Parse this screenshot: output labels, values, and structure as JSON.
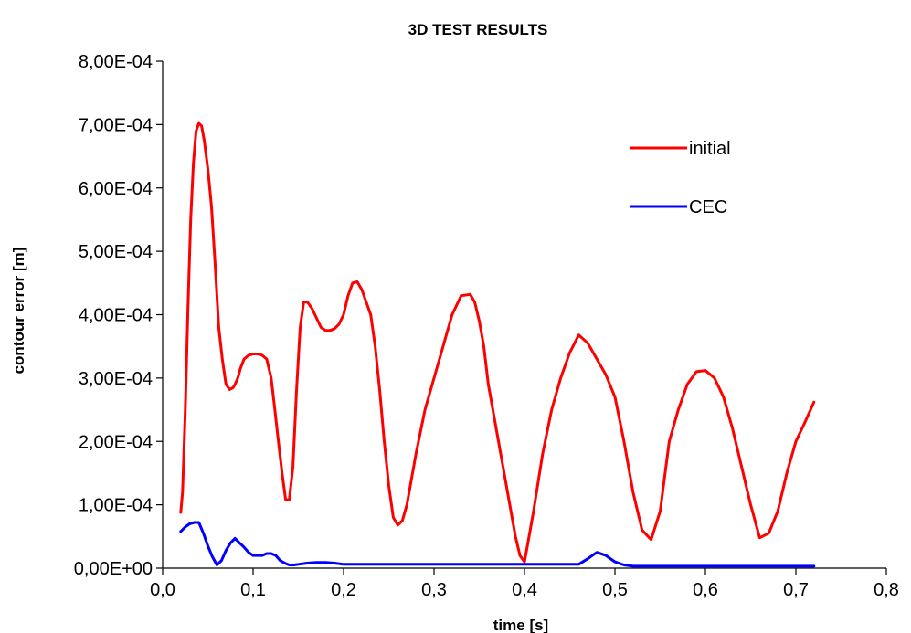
{
  "chart_data": {
    "type": "line",
    "title": "3D TEST RESULTS",
    "xlabel": "time [s]",
    "ylabel": "contour error [m]",
    "xlim": [
      0,
      0.8
    ],
    "ylim": [
      0,
      0.0008
    ],
    "x_ticks": [
      "0,0",
      "0,1",
      "0,2",
      "0,3",
      "0,4",
      "0,5",
      "0,6",
      "0,7",
      "0,8"
    ],
    "y_ticks": [
      "0,00E+00",
      "1,00E-04",
      "2,00E-04",
      "3,00E-04",
      "4,00E-04",
      "5,00E-04",
      "6,00E-04",
      "7,00E-04",
      "8,00E-04"
    ],
    "grid": false,
    "legend_position": "top-right",
    "series": [
      {
        "name": "initial",
        "color": "#ff0000",
        "x": [
          0.02,
          0.022,
          0.025,
          0.028,
          0.031,
          0.034,
          0.037,
          0.04,
          0.043,
          0.046,
          0.05,
          0.054,
          0.058,
          0.062,
          0.066,
          0.07,
          0.074,
          0.078,
          0.08,
          0.083,
          0.086,
          0.09,
          0.095,
          0.1,
          0.105,
          0.11,
          0.115,
          0.12,
          0.124,
          0.128,
          0.132,
          0.136,
          0.14,
          0.144,
          0.148,
          0.152,
          0.156,
          0.16,
          0.165,
          0.17,
          0.175,
          0.18,
          0.185,
          0.19,
          0.195,
          0.2,
          0.205,
          0.21,
          0.215,
          0.22,
          0.225,
          0.23,
          0.235,
          0.24,
          0.245,
          0.25,
          0.255,
          0.26,
          0.265,
          0.27,
          0.28,
          0.29,
          0.3,
          0.31,
          0.32,
          0.33,
          0.34,
          0.345,
          0.35,
          0.355,
          0.36,
          0.37,
          0.38,
          0.39,
          0.395,
          0.4,
          0.405,
          0.41,
          0.42,
          0.43,
          0.44,
          0.45,
          0.46,
          0.47,
          0.48,
          0.49,
          0.5,
          0.51,
          0.52,
          0.53,
          0.54,
          0.55,
          0.56,
          0.57,
          0.58,
          0.59,
          0.6,
          0.61,
          0.62,
          0.63,
          0.64,
          0.65,
          0.66,
          0.67,
          0.68,
          0.69,
          0.7,
          0.71,
          0.72
        ],
        "values": [
          8.8e-05,
          0.00012,
          0.00025,
          0.00041,
          0.00055,
          0.00064,
          0.00069,
          0.000702,
          0.000698,
          0.000675,
          0.00063,
          0.00057,
          0.00048,
          0.00038,
          0.00033,
          0.00029,
          0.000282,
          0.000285,
          0.00029,
          0.0003,
          0.000315,
          0.00033,
          0.000336,
          0.000338,
          0.000338,
          0.000336,
          0.00033,
          0.0003,
          0.00025,
          0.0002,
          0.00015,
          0.000108,
          0.000108,
          0.00016,
          0.00028,
          0.00038,
          0.00042,
          0.00042,
          0.00041,
          0.000395,
          0.00038,
          0.000375,
          0.000375,
          0.000378,
          0.000385,
          0.0004,
          0.00043,
          0.00045,
          0.000452,
          0.00044,
          0.00042,
          0.0004,
          0.00035,
          0.00028,
          0.0002,
          0.00013,
          8e-05,
          6.8e-05,
          7.5e-05,
          0.0001,
          0.00018,
          0.00025,
          0.0003,
          0.00035,
          0.0004,
          0.00043,
          0.000432,
          0.00042,
          0.00039,
          0.00035,
          0.00029,
          0.00021,
          0.00013,
          5e-05,
          2e-05,
          1e-05,
          5e-05,
          9e-05,
          0.00018,
          0.00025,
          0.0003,
          0.00034,
          0.000368,
          0.000355,
          0.00033,
          0.000305,
          0.00027,
          0.0002,
          0.00012,
          6e-05,
          4.5e-05,
          9e-05,
          0.0002,
          0.00025,
          0.00029,
          0.00031,
          0.000312,
          0.0003,
          0.00027,
          0.00022,
          0.00016,
          0.0001,
          4.8e-05,
          5.5e-05,
          9e-05,
          0.00015,
          0.0002,
          0.00023,
          0.000262
        ]
      },
      {
        "name": "CEC",
        "color": "#0000ff",
        "x": [
          0.02,
          0.025,
          0.03,
          0.035,
          0.04,
          0.045,
          0.05,
          0.055,
          0.06,
          0.065,
          0.07,
          0.075,
          0.08,
          0.085,
          0.09,
          0.095,
          0.1,
          0.105,
          0.11,
          0.115,
          0.12,
          0.125,
          0.13,
          0.135,
          0.14,
          0.145,
          0.15,
          0.16,
          0.17,
          0.18,
          0.19,
          0.2,
          0.22,
          0.25,
          0.3,
          0.35,
          0.4,
          0.45,
          0.46,
          0.47,
          0.48,
          0.49,
          0.5,
          0.51,
          0.52,
          0.55,
          0.6,
          0.65,
          0.7,
          0.72
        ],
        "values": [
          5.8e-05,
          6.5e-05,
          7e-05,
          7.2e-05,
          7.2e-05,
          5.5e-05,
          3.5e-05,
          1.8e-05,
          5e-06,
          1.2e-05,
          2.8e-05,
          4e-05,
          4.7e-05,
          4e-05,
          3.3e-05,
          2.5e-05,
          2e-05,
          2e-05,
          2e-05,
          2.3e-05,
          2.3e-05,
          2e-05,
          1.2e-05,
          8e-06,
          5e-06,
          5e-06,
          6e-06,
          8e-06,
          9e-06,
          9e-06,
          8e-06,
          6e-06,
          6e-06,
          6e-06,
          6e-06,
          6e-06,
          6e-06,
          6e-06,
          6e-06,
          1.5e-05,
          2.5e-05,
          2e-05,
          1e-05,
          5e-06,
          3e-06,
          3e-06,
          3e-06,
          3e-06,
          3e-06,
          3e-06
        ]
      }
    ]
  }
}
